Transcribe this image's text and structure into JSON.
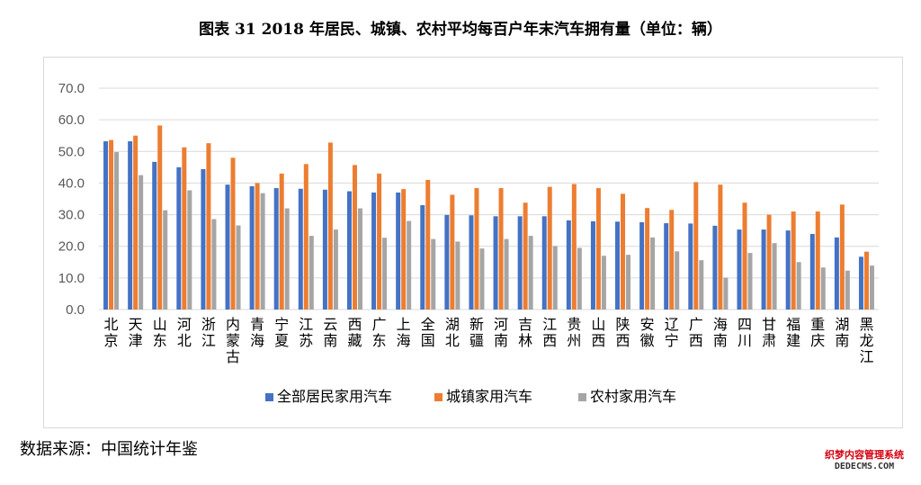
{
  "title": "图表 31  2018 年居民、城镇、农村平均每百户年末汽车拥有量（单位：辆）",
  "source": "数据来源：中国统计年鉴",
  "watermark": {
    "line1": "织梦内容管理系统",
    "line2": "DEDECMS.COM"
  },
  "colors": {
    "total": "#4472C4",
    "urban": "#ED7D31",
    "rural": "#A5A5A5",
    "grid": "#d9d9d9",
    "axis": "#595959"
  },
  "chart_data": {
    "type": "bar",
    "title": "图表 31  2018 年居民、城镇、农村平均每百户年末汽车拥有量（单位：辆）",
    "xlabel": "",
    "ylabel": "",
    "ylim": [
      0,
      70
    ],
    "yticks": [
      "0.0",
      "10.0",
      "20.0",
      "30.0",
      "40.0",
      "50.0",
      "60.0",
      "70.0"
    ],
    "legend_position": "bottom",
    "categories": [
      "北京",
      "天津",
      "山东",
      "河北",
      "浙江",
      "内蒙古",
      "青海",
      "宁夏",
      "江苏",
      "云南",
      "西藏",
      "广东",
      "上海",
      "全国",
      "湖北",
      "新疆",
      "河南",
      "吉林",
      "江西",
      "贵州",
      "山西",
      "陕西",
      "安徽",
      "辽宁",
      "广西",
      "海南",
      "四川",
      "甘肃",
      "福建",
      "重庆",
      "湖南",
      "黑龙江"
    ],
    "series": [
      {
        "name": "全部居民家用汽车",
        "color": "#4472C4",
        "values": [
          53.2,
          53.2,
          46.7,
          45.0,
          44.4,
          39.5,
          39.0,
          38.4,
          38.2,
          37.9,
          37.4,
          37.0,
          37.0,
          33.0,
          29.9,
          29.8,
          29.5,
          29.5,
          29.5,
          28.2,
          27.9,
          27.8,
          27.6,
          27.3,
          27.2,
          26.5,
          25.3,
          25.3,
          25.0,
          23.9,
          22.8,
          16.7
        ]
      },
      {
        "name": "城镇家用汽车",
        "color": "#ED7D31",
        "values": [
          53.6,
          55.0,
          58.2,
          51.3,
          52.6,
          48.0,
          40.0,
          43.0,
          46.0,
          52.8,
          45.7,
          43.0,
          38.1,
          41.0,
          36.3,
          38.4,
          38.4,
          33.8,
          38.8,
          39.7,
          38.4,
          36.6,
          32.1,
          31.5,
          40.3,
          39.5,
          33.8,
          30.0,
          31.0,
          31.0,
          33.2,
          18.3
        ]
      },
      {
        "name": "农村家用汽车",
        "color": "#A5A5A5",
        "values": [
          49.8,
          42.5,
          31.4,
          37.7,
          28.6,
          26.6,
          36.8,
          32.0,
          23.3,
          25.3,
          32.0,
          22.7,
          28.0,
          22.3,
          21.5,
          19.3,
          22.3,
          23.3,
          20.1,
          19.5,
          17.0,
          17.3,
          22.8,
          18.4,
          15.6,
          10.1,
          17.9,
          21.0,
          15.0,
          13.3,
          12.3,
          13.9
        ]
      }
    ]
  }
}
